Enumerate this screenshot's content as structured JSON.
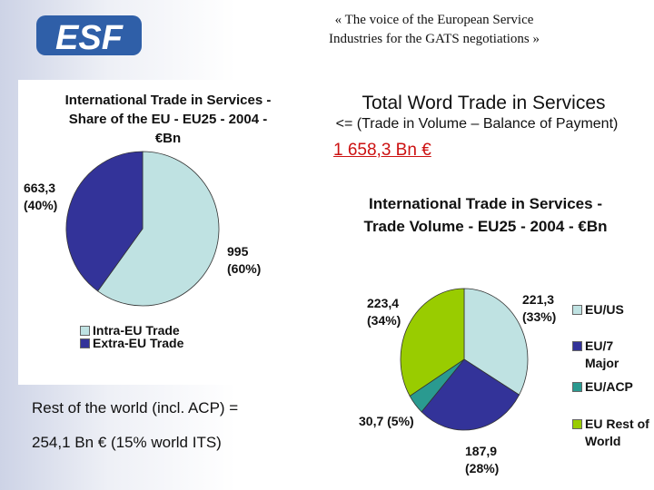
{
  "header": {
    "logo_text": "ESF",
    "tagline_line1": "« The voice of the European Service",
    "tagline_line2": "Industries for the GATS negotiations »"
  },
  "summary": {
    "title": "Total Word Trade in Services",
    "subtitle": "<= (Trade in Volume – Balance of Payment)",
    "total": "1 658,3 Bn €",
    "rest_line1": "Rest of the world (incl. ACP) =",
    "rest_line2": "254,1 Bn € (15% world ITS)"
  },
  "colors": {
    "light_blue": "#bfe2e2",
    "dark_blue": "#333399",
    "teal": "#2a9a90",
    "green": "#99cc00",
    "total_red": "#cc1111"
  },
  "chart_data": [
    {
      "type": "pie",
      "title_lines": [
        "International Trade in Services -",
        "Share of the EU - EU25 - 2004 -",
        "€Bn"
      ],
      "slices": [
        {
          "name": "Intra-EU Trade",
          "value": 995,
          "label": "995",
          "pct_label": "(60%)",
          "color": "#bfe2e2"
        },
        {
          "name": "Extra-EU Trade",
          "value": 663.3,
          "label": "663,3",
          "pct_label": "(40%)",
          "color": "#333399"
        }
      ],
      "legend": [
        "Intra-EU Trade",
        "Extra-EU Trade"
      ],
      "legend_position": "bottom-left"
    },
    {
      "type": "pie",
      "title_lines": [
        "International Trade in Services -",
        "Trade Volume - EU25 - 2004 - €Bn"
      ],
      "slices": [
        {
          "name": "EU/US",
          "value": 221.3,
          "label": "221,3",
          "pct_label": "(33%)",
          "color": "#bfe2e2"
        },
        {
          "name": "EU/7 Major",
          "value": 187.9,
          "label": "187,9",
          "pct_label": "(28%)",
          "color": "#333399"
        },
        {
          "name": "EU/ACP",
          "value": 30.7,
          "label": "30,7 (5%)",
          "pct_label": "",
          "color": "#2a9a90"
        },
        {
          "name": "EU Rest of World",
          "value": 223.4,
          "label": "223,4",
          "pct_label": "(34%)",
          "color": "#99cc00"
        }
      ],
      "legend": [
        "EU/US",
        "EU/7 Major",
        "EU/ACP",
        "EU Rest of World"
      ],
      "legend_position": "right"
    }
  ]
}
